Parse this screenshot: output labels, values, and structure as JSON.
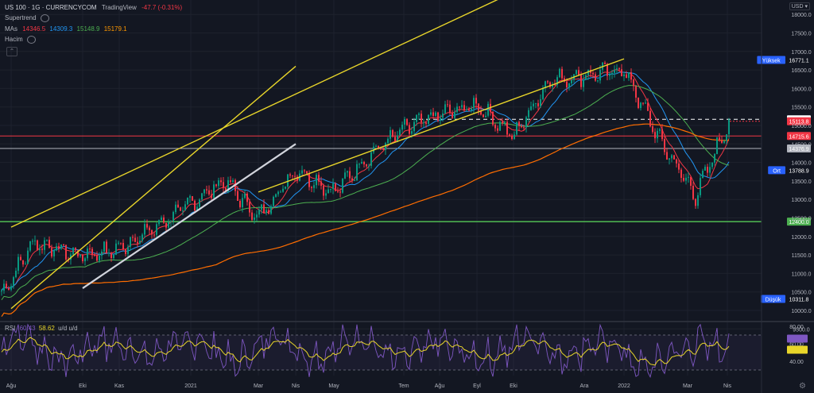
{
  "header": {
    "symbol": "US 100 · 1G · CURRENCYCOM",
    "source": "TradingView",
    "change": "-47.7 (-0.31%)",
    "supertrend_label": "Supertrend",
    "mas_label": "MAs",
    "ma_values": [
      "14346.5",
      "14309.3",
      "15148.9",
      "15179.1"
    ],
    "volume_label": "Hacim",
    "collapse_icon": "chevron-up-icon",
    "currency_label": "USD"
  },
  "rsi_legend": {
    "label": "RSI",
    "value1": "60.43",
    "value2": "58.62",
    "suffix": "u/d u/d"
  },
  "colors": {
    "background": "#131722",
    "grid": "#1e222d",
    "axis_text": "#b2b5be",
    "up": "#089981",
    "down": "#f23645",
    "ma_fast": "#f23645",
    "ma_mid": "#2196f3",
    "ma_slow": "#4caf50",
    "ma_long": "#ff6d00",
    "trend_yellow": "#e8d52a",
    "trend_white": "#d1d4dc",
    "support_green": "#4caf50",
    "rsi_line": "#7e57c2",
    "rsi_signal": "#e8d52a"
  },
  "chart_data": [
    {
      "type": "candlestick",
      "title": "US 100 · 1G · CURRENCYCOM",
      "x_axis_labels": [
        "Ağu",
        "Eki",
        "Kas",
        "2021",
        "Mar",
        "Nis",
        "May",
        "Tem",
        "Ağu",
        "Eyl",
        "Eki",
        "Ara",
        "2022",
        "Mar",
        "Nis"
      ],
      "y_ticks": [
        9500,
        10000,
        10500,
        11000,
        11500,
        12000,
        12500,
        13000,
        13500,
        14000,
        14500,
        15000,
        15500,
        16000,
        16500,
        17000,
        17500,
        18000,
        18500,
        19000
      ],
      "y_tick_labels": [
        "9500.0",
        "10000.0",
        "10500.0",
        "11000.0",
        "11500.0",
        "12000.0",
        "12500.0",
        "13000.0",
        "13500.0",
        "14000.0",
        "14500.0",
        "15000.0",
        "15500.0",
        "16000.0",
        "16500.0",
        "17000.0",
        "17500.0",
        "18000.0",
        "18500.0",
        "19000.0"
      ],
      "ylim": [
        9200,
        19400
      ],
      "log_scale": false,
      "grid": true,
      "close_series_anchors": {
        "x": [
          "Ağu",
          "Eyl",
          "Eki",
          "Kas",
          "Ara",
          "2021",
          "Şub",
          "Mar",
          "Nis",
          "May",
          "Haz",
          "Tem",
          "Ağu",
          "Eyl",
          "Eki",
          "Kas",
          "Ara",
          "2022",
          "Şub",
          "Mar",
          "Nis"
        ],
        "close": [
          10350,
          11850,
          11500,
          11600,
          12200,
          12900,
          13500,
          12500,
          13800,
          13200,
          14200,
          14900,
          15300,
          15550,
          14700,
          16200,
          16350,
          16500,
          14600,
          13100,
          15113.8
        ]
      },
      "horizontal_levels": [
        {
          "label": "Yüksek",
          "value": 16771.1,
          "color": "#2962ff",
          "style": "badge"
        },
        {
          "label": "",
          "value": 15167.3,
          "color": "#ffffff",
          "style": "dashed"
        },
        {
          "label": "",
          "value": 15113.8,
          "color": "#f23645",
          "style": "price"
        },
        {
          "label": "",
          "value": 14715.6,
          "color": "#f23645",
          "style": "solid"
        },
        {
          "label": "",
          "value": 14376.9,
          "color": "#b2b5be",
          "style": "solid"
        },
        {
          "label": "Ort",
          "value": 13788.9,
          "color": "#2962ff",
          "style": "badge"
        },
        {
          "label": "",
          "value": 12400.0,
          "color": "#4caf50",
          "style": "solid"
        },
        {
          "label": "Düşük",
          "value": 10311.8,
          "color": "#2962ff",
          "style": "badge"
        }
      ],
      "level_tag_texts": [
        "16771.1",
        "15167.3",
        "15113.8",
        "14715.6",
        "14376.9",
        "13788.9",
        "12400.0",
        "10311.8"
      ],
      "moving_averages": [
        {
          "name": "MA 1",
          "value": 14346.5,
          "color": "#f23645"
        },
        {
          "name": "MA 2",
          "value": 14309.3,
          "color": "#2196f3"
        },
        {
          "name": "MA 3",
          "value": 15148.9,
          "color": "#4caf50"
        },
        {
          "name": "MA 4",
          "value": 15179.1,
          "color": "#ff6d00"
        }
      ],
      "trendlines": [
        {
          "color": "#e8d52a",
          "from": [
            "Ağu",
            12250
          ],
          "to": [
            "2022",
            20000
          ]
        },
        {
          "color": "#e8d52a",
          "from": [
            "Ağu",
            10050
          ],
          "to": [
            "Nis",
            16600
          ]
        },
        {
          "color": "#d1d4dc",
          "from": [
            "Eki",
            10600
          ],
          "to": [
            "Nis",
            14500
          ]
        },
        {
          "color": "#e8d52a",
          "from": [
            "2022",
            16800
          ],
          "to": [
            "Mar",
            13200
          ]
        }
      ]
    },
    {
      "type": "line",
      "title": "RSI",
      "y_ticks": [
        40,
        60,
        80
      ],
      "y_tick_labels": [
        "40.00",
        "60.00",
        "80.00"
      ],
      "ylim": [
        25,
        85
      ],
      "bands": [
        70,
        30
      ],
      "series": [
        {
          "name": "",
          "value_last": 60.43,
          "color": "#7e57c2"
        },
        {
          "name": "",
          "value_last": 58.62,
          "color": "#e8d52a"
        }
      ]
    }
  ]
}
